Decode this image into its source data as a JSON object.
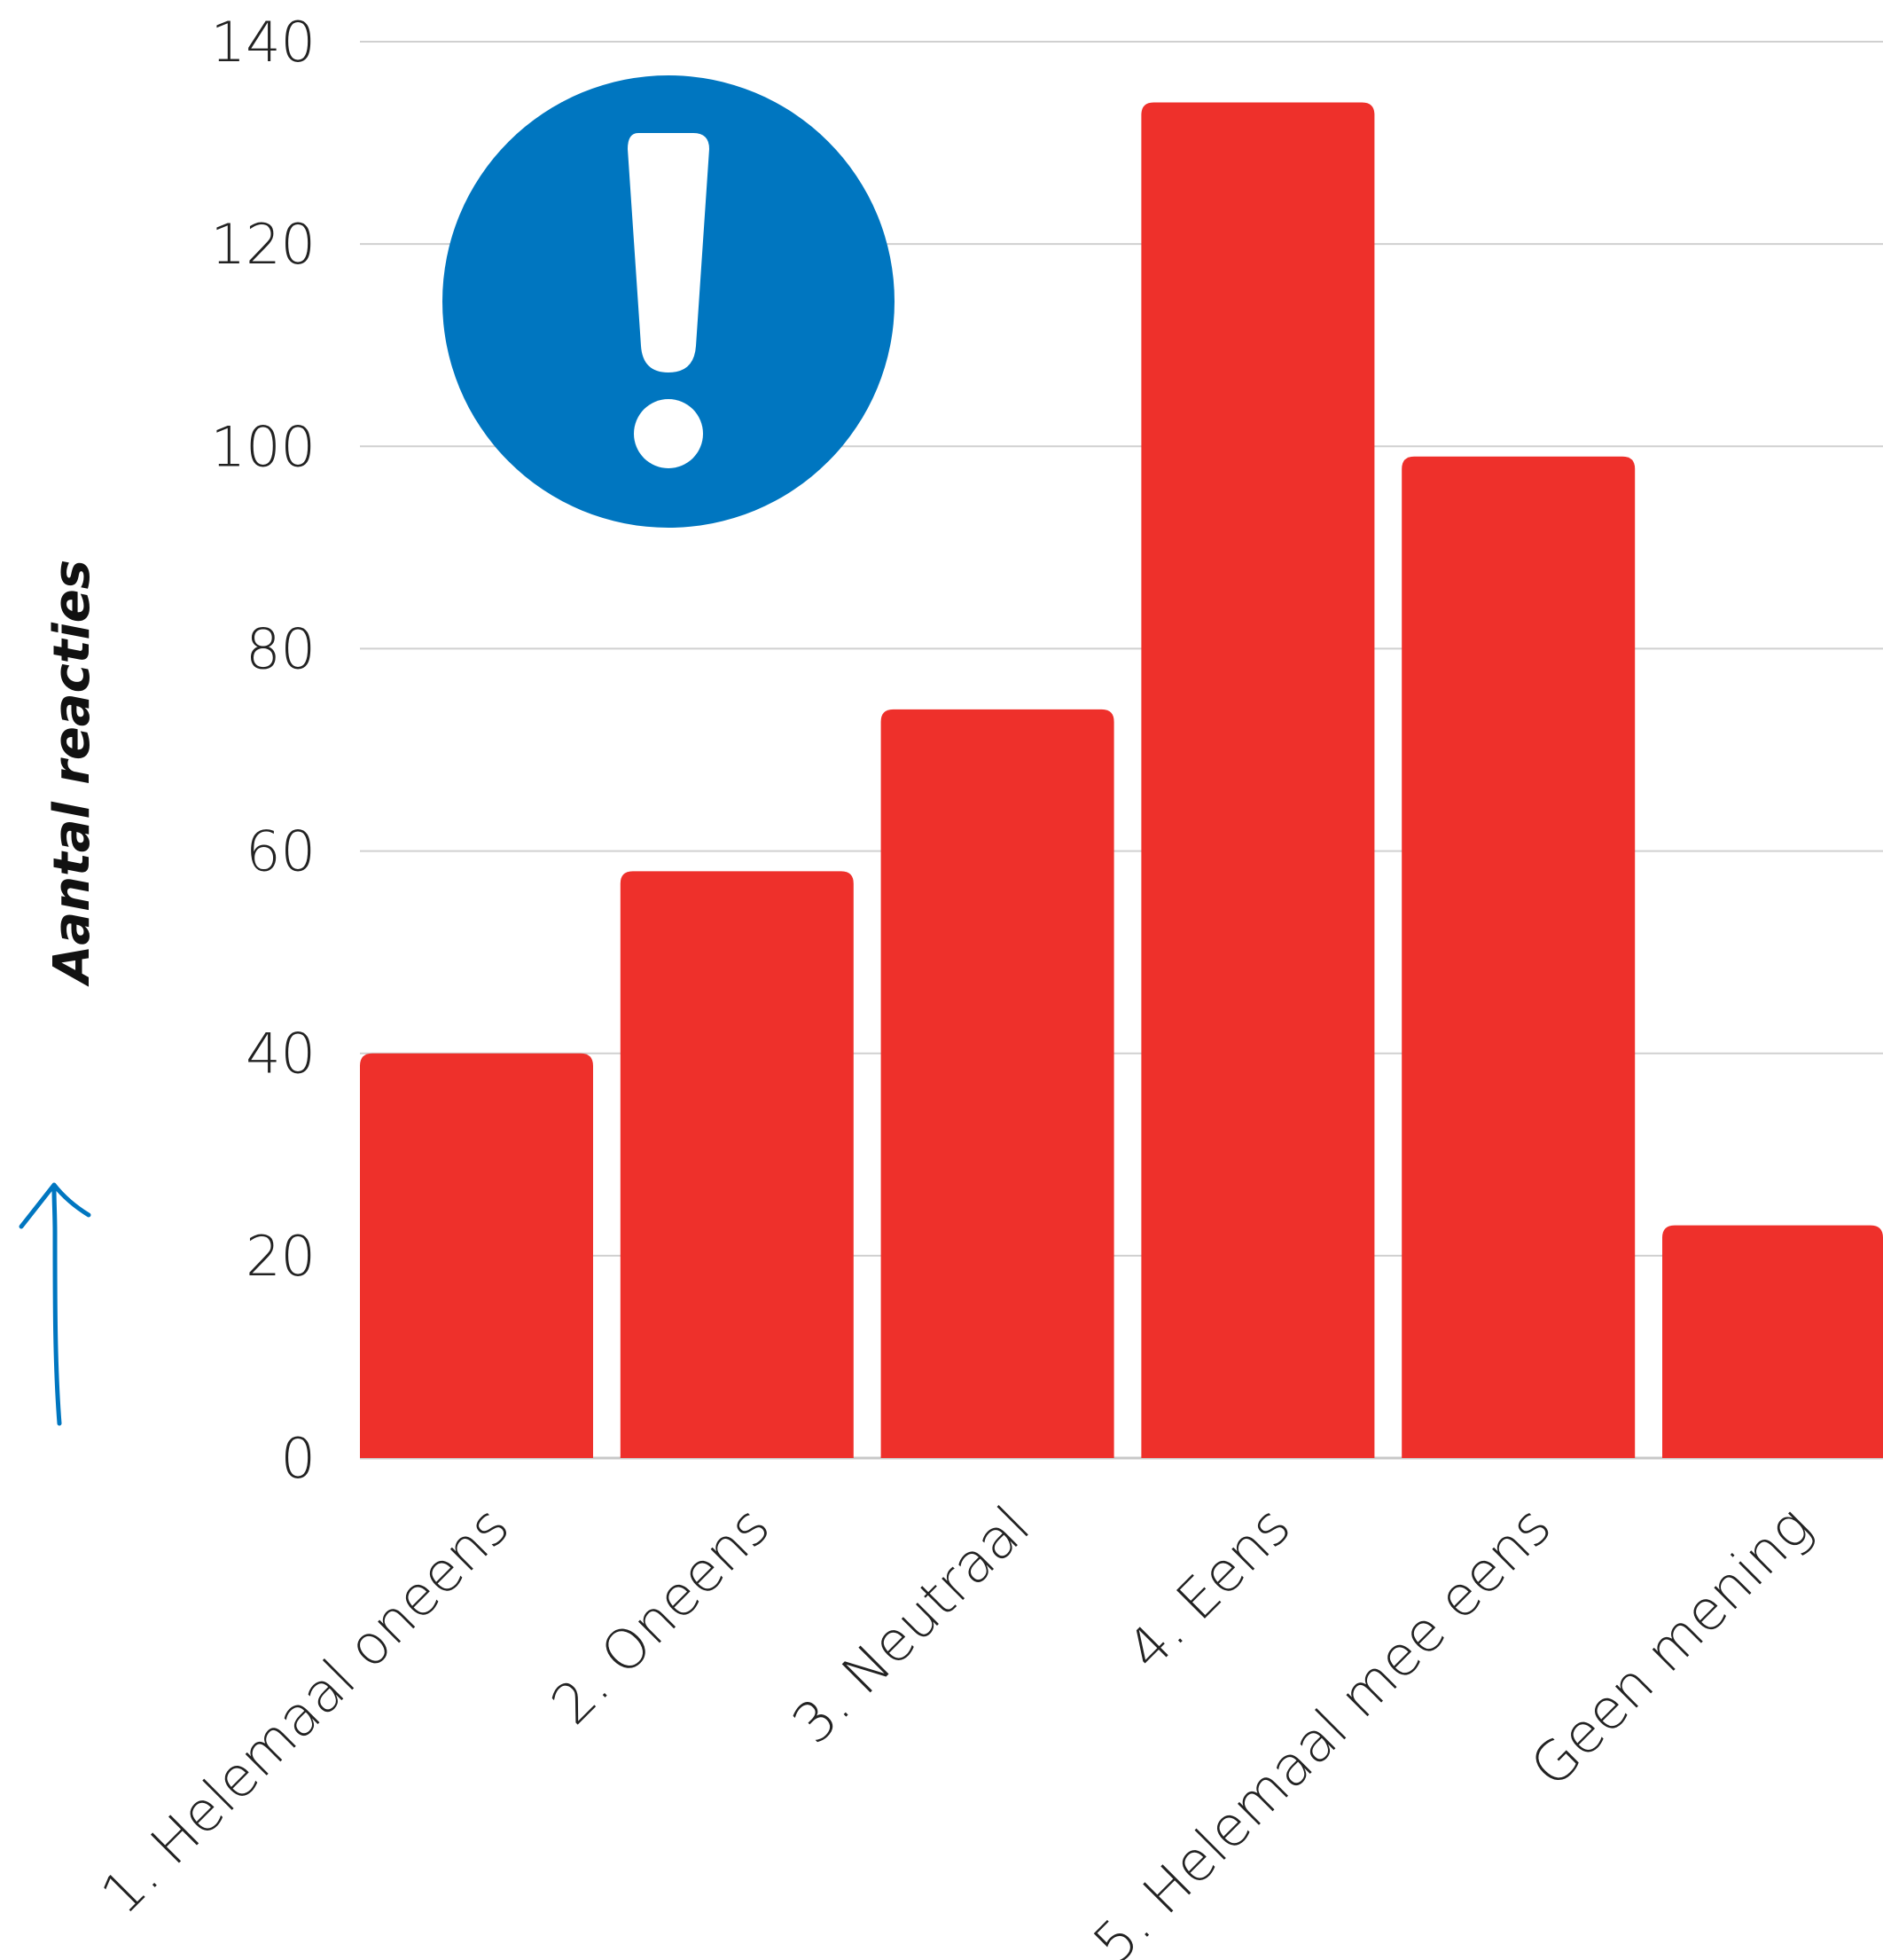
{
  "chart_data": {
    "type": "bar",
    "title": "",
    "xlabel": "",
    "ylabel": "Aantal reacties",
    "categories": [
      "1. Helemaal oneens",
      "2. Oneens",
      "3. Neutraal",
      "4. Eens",
      "5. Helemaal mee eens",
      "Geen mening"
    ],
    "values": [
      40,
      58,
      74,
      134,
      99,
      23
    ],
    "ylim": [
      0,
      140
    ],
    "yticks": [
      0,
      20,
      40,
      60,
      80,
      100,
      120,
      140
    ],
    "grid": true,
    "legend": "none"
  },
  "colors": {
    "bar": "#ee302b",
    "grid": "#d0d0d0",
    "axis": "#c8c8c8",
    "icon_circle": "#0076c0",
    "icon_mark": "#ffffff",
    "arrow": "#0076c0"
  },
  "icons": {
    "notice": "exclamation-circle-icon",
    "axis_arrow": "up-arrow-icon"
  }
}
